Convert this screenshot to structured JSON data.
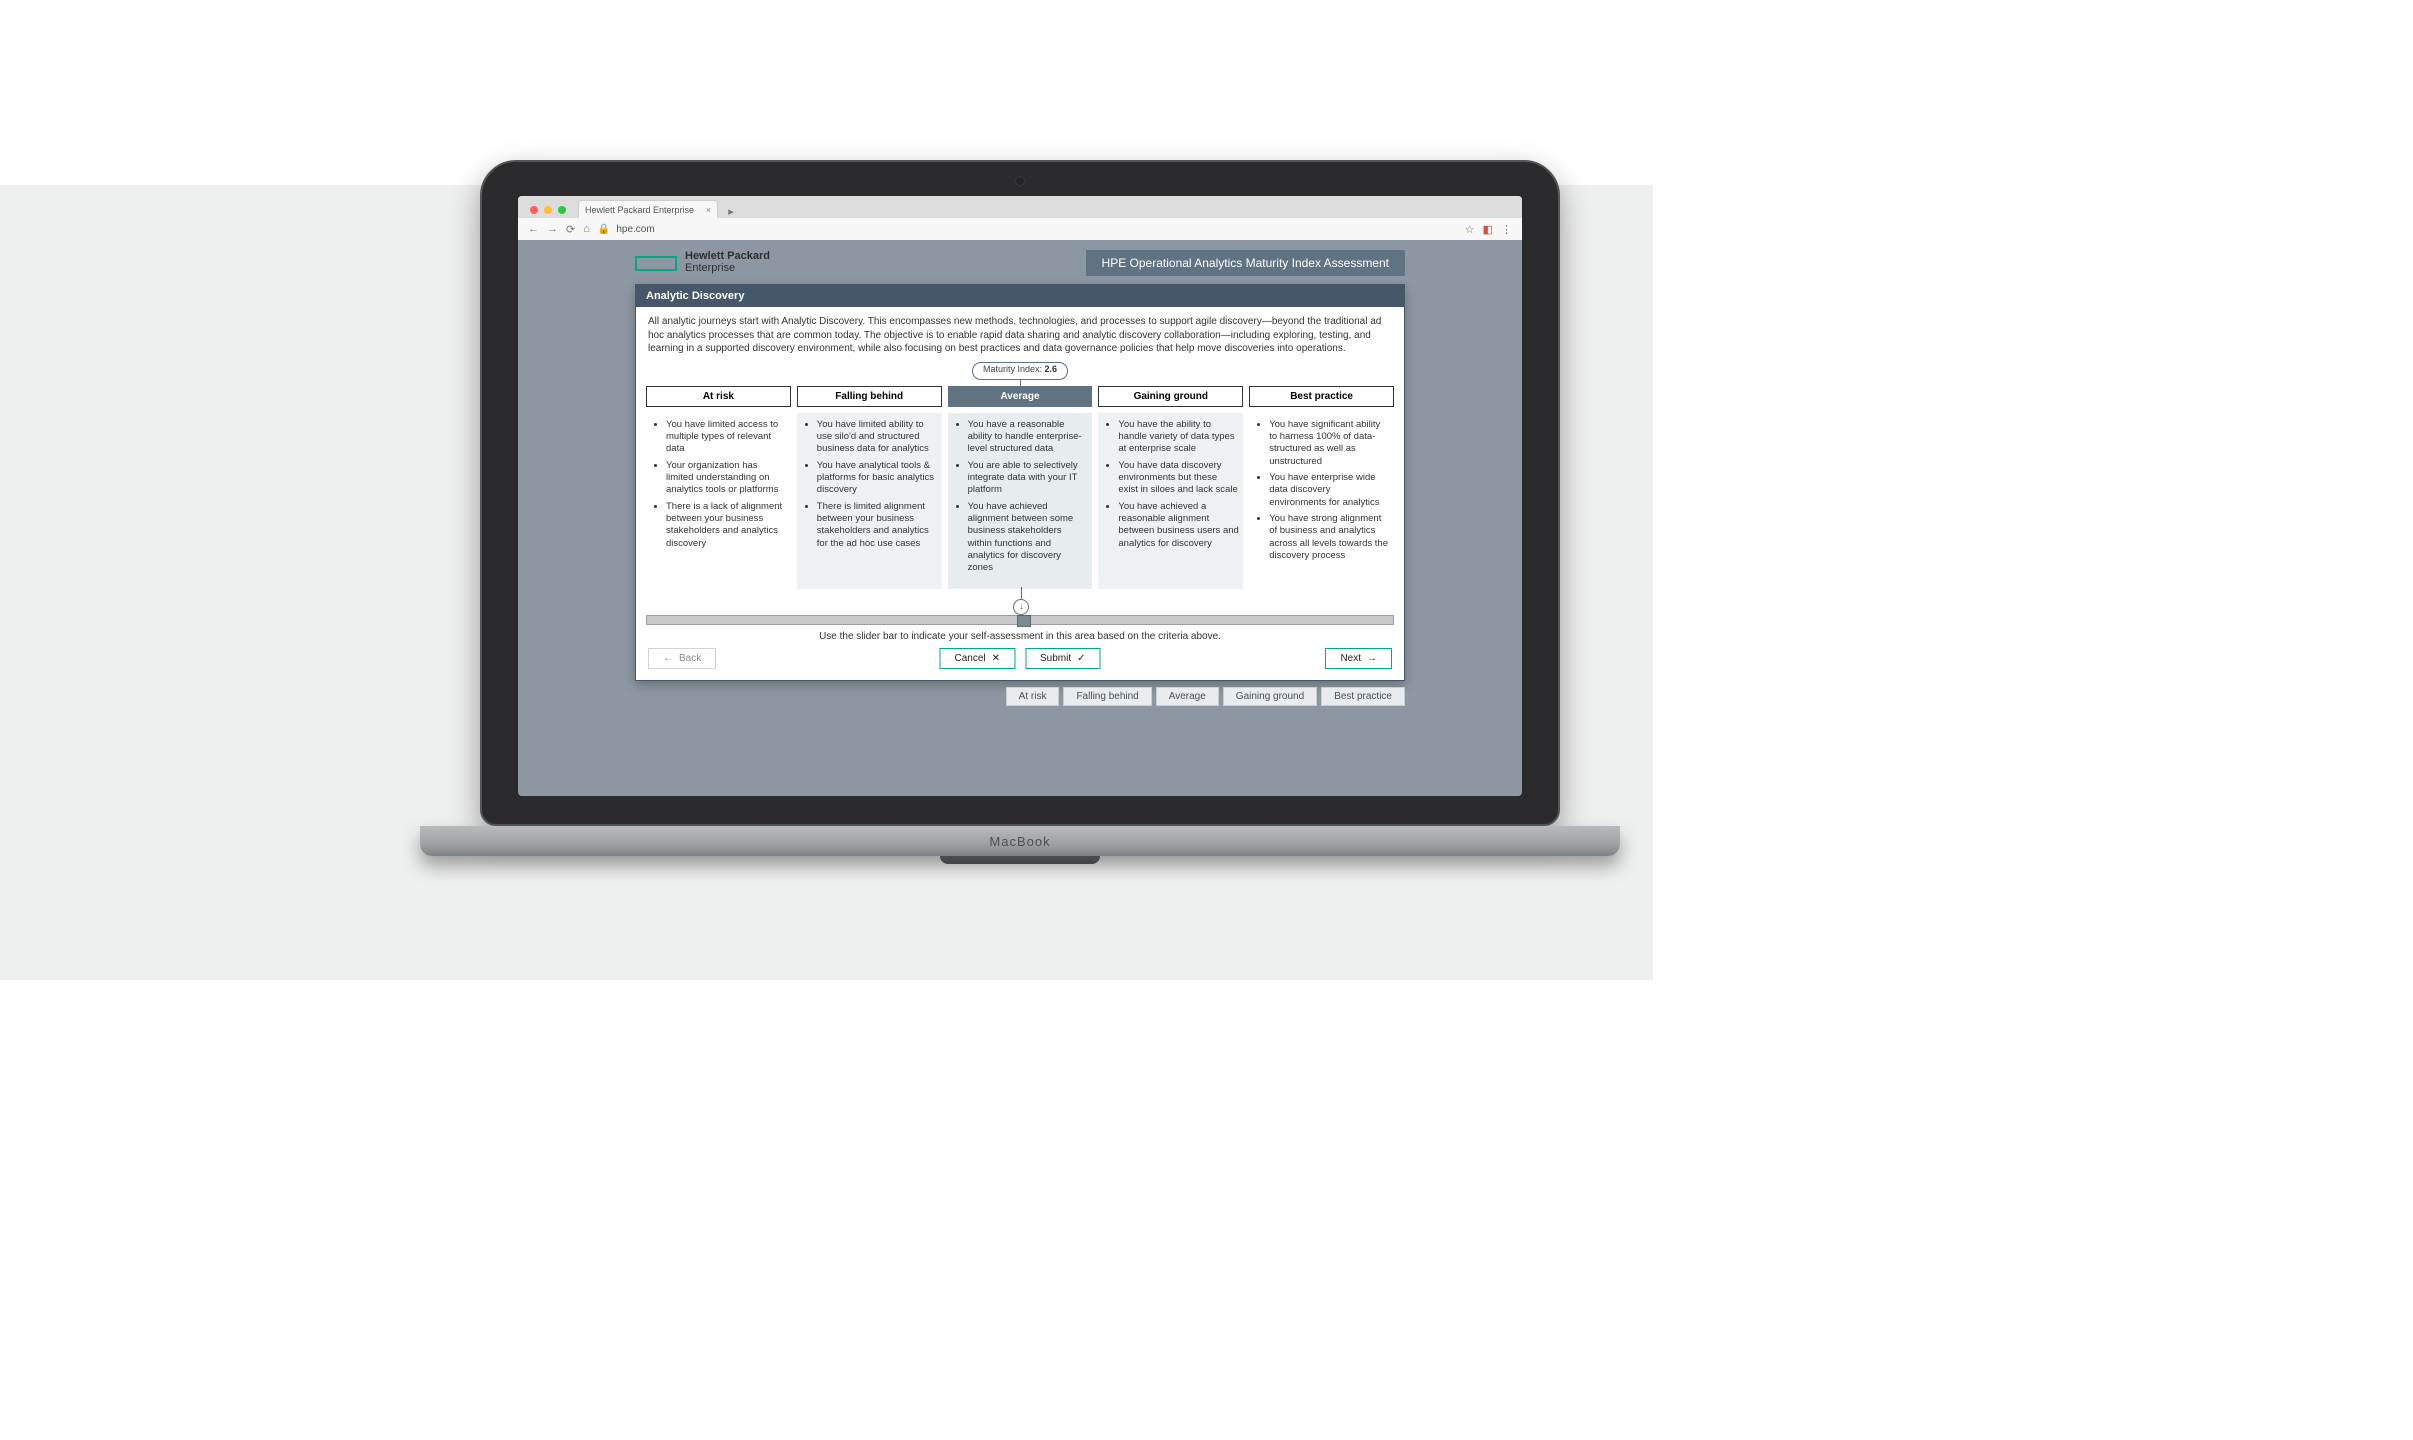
{
  "browser": {
    "tab_title": "Hewlett Packard Enterprise",
    "url": "hpe.com"
  },
  "header": {
    "logo_line1": "Hewlett Packard",
    "logo_line2": "Enterprise",
    "page_title": "HPE Operational Analytics Maturity Index Assessment",
    "accent_color": "#01a982",
    "chip_bg": "#5f7382"
  },
  "card": {
    "section_title": "Analytic Discovery",
    "intro": "All analytic journeys start with Analytic Discovery. This encompasses new methods, technologies, and processes to support agile discovery—beyond the traditional ad hoc analytics processes that are common today. The objective is to enable rapid data sharing and analytic discovery collaboration—including exploring, testing, and learning in a supported discovery environment, while also focusing on best practices and data governance policies that help move discoveries into operations.",
    "maturity_label": "Maturity Index:",
    "maturity_value": "2.6",
    "slider_hint": "Use the slider bar to indicate your self-assessment in this area based on the criteria above.",
    "active_index": 2,
    "levels": [
      {
        "name": "At risk",
        "bullets": [
          "You have limited access to multiple types of relevant data",
          "Your organization has limited understanding on analytics tools or platforms",
          "There is a lack of alignment between your business stakeholders and analytics discovery"
        ]
      },
      {
        "name": "Falling behind",
        "bullets": [
          "You have limited ability to use silo'd and structured business data for analytics",
          "You have analytical tools & platforms for basic analytics discovery",
          "There is limited alignment between your business stakeholders and analytics for the ad hoc use cases"
        ]
      },
      {
        "name": "Average",
        "bullets": [
          "You have a reasonable ability to handle enterprise-level structured data",
          "You are able to selectively integrate data with your IT platform",
          "You have achieved alignment between some business stakeholders within functions and analytics for discovery zones"
        ]
      },
      {
        "name": "Gaining ground",
        "bullets": [
          "You have the ability to handle variety of data types at enterprise scale",
          "You have data discovery environments but these exist in siloes and lack scale",
          "You have achieved a reasonable alignment between business users and analytics for discovery"
        ]
      },
      {
        "name": "Best practice",
        "bullets": [
          "You have significant ability to harness 100% of data-structured as well as unstructured",
          "You have enterprise wide data discovery environments for analytics",
          "You have strong alignment of business and analytics across all levels towards the discovery process"
        ]
      }
    ],
    "buttons": {
      "back": "Back",
      "cancel": "Cancel",
      "submit": "Submit",
      "next": "Next"
    }
  },
  "pager": [
    "At risk",
    "Falling behind",
    "Average",
    "Gaining ground",
    "Best practice"
  ],
  "device_label": "MacBook"
}
